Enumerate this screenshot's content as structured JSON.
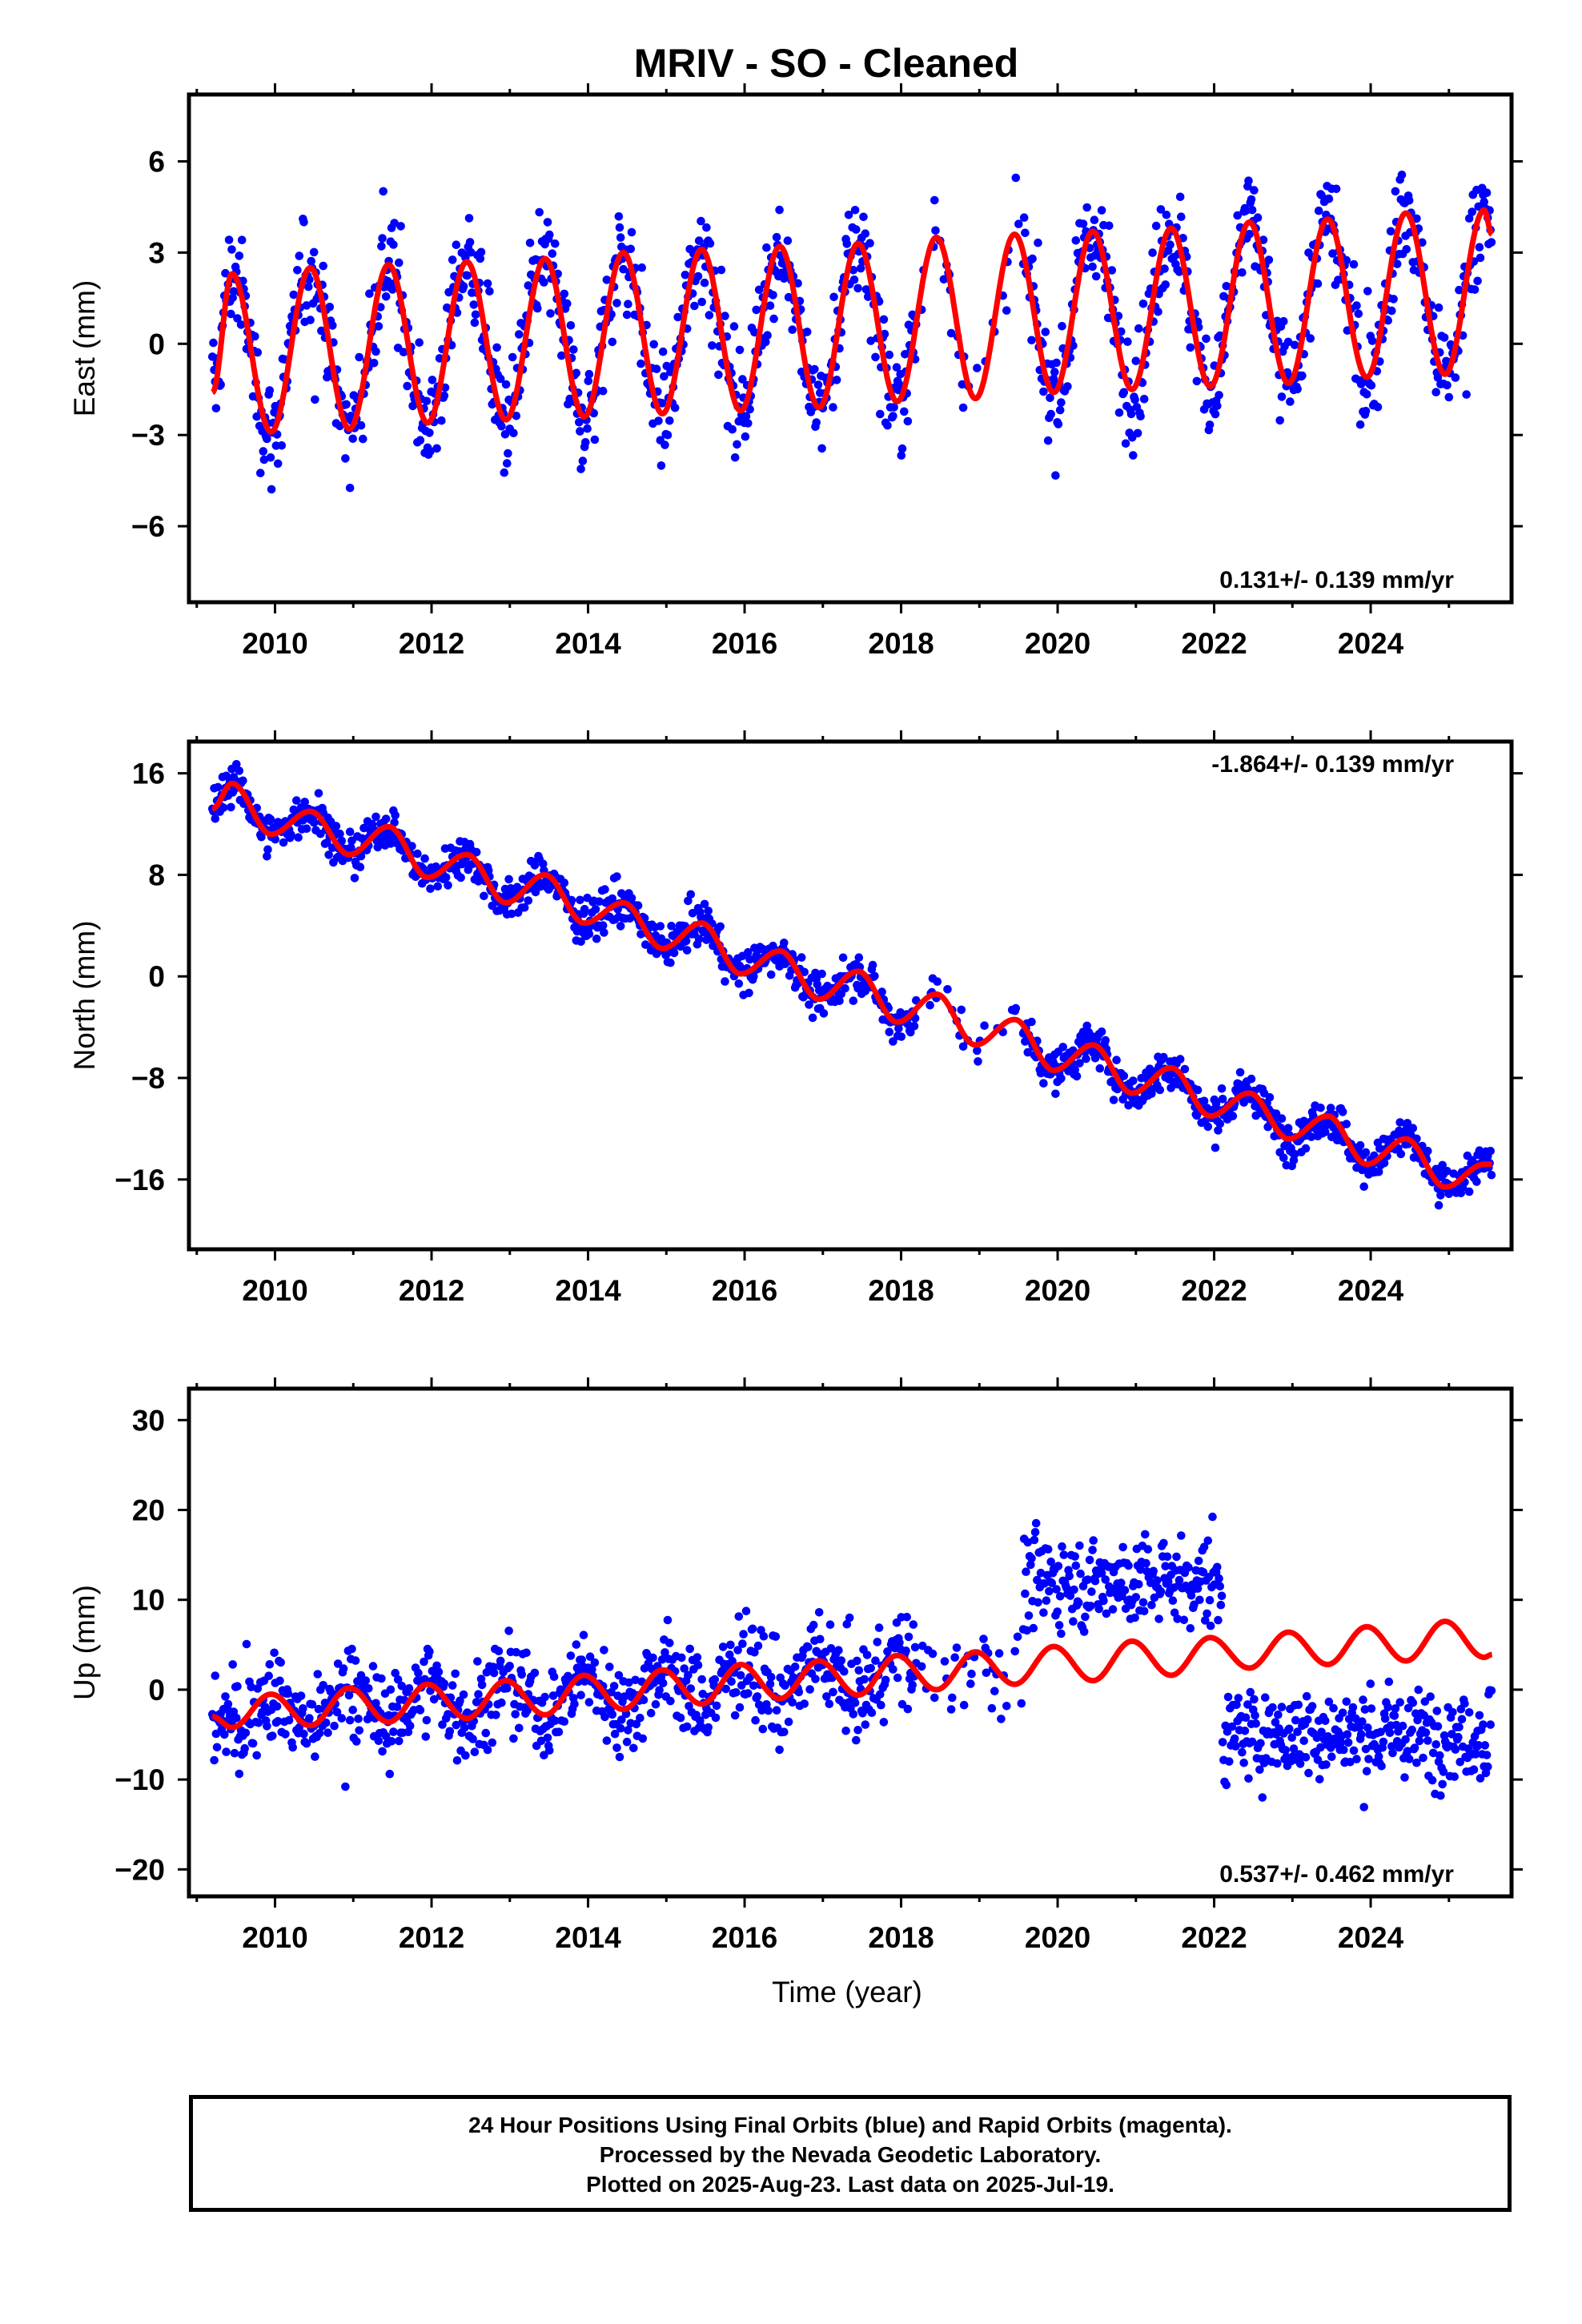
{
  "title": "MRIV  - SO - Cleaned",
  "colors": {
    "observed": "#0000ff",
    "model": "#ff0000",
    "frame": "#000000"
  },
  "x_axis": {
    "label": "Time (year)",
    "range": [
      2008.9,
      2025.8
    ],
    "ticks": [
      "2010",
      "2012",
      "2014",
      "2016",
      "2018",
      "2020",
      "2022",
      "2024"
    ],
    "tick_values": [
      2010,
      2012,
      2014,
      2016,
      2018,
      2020,
      2022,
      2024
    ]
  },
  "caption": {
    "line1": "24 Hour Positions Using Final Orbits (blue) and Rapid Orbits (magenta).",
    "line2": "Processed by the Nevada Geodetic Laboratory.",
    "line3": "Plotted on 2025-Aug-23. Last data on 2025-Jul-19."
  },
  "chart_data": [
    {
      "type": "scatter",
      "component": "East",
      "ylabel": "East (mm)",
      "ylim": [
        -8.5,
        8.2
      ],
      "yticks": [
        -6,
        -3,
        0,
        3,
        6
      ],
      "ytick_labels": [
        "−6",
        "−3",
        "0",
        "3",
        "6"
      ],
      "rate_text": "0.131+/- 0.139 mm/yr",
      "rate_position": "bottom-right",
      "series": [
        {
          "role": "daily positions",
          "color": "#0000ff",
          "marker": "dot",
          "x_range": [
            2009.2,
            2025.55
          ],
          "gap": [
            2018.2,
            2019.55
          ]
        },
        {
          "role": "model fit",
          "color": "#ff0000",
          "marker": "line",
          "x": [
            2009.2,
            2009.45,
            2009.95,
            2010.45,
            2010.95,
            2011.45,
            2011.95,
            2012.45,
            2012.95,
            2013.45,
            2013.95,
            2014.45,
            2014.95,
            2015.45,
            2015.95,
            2016.45,
            2016.95,
            2017.45,
            2017.95,
            2018.45,
            2018.95,
            2019.45,
            2019.95,
            2020.45,
            2020.95,
            2021.45,
            2021.95,
            2022.45,
            2022.95,
            2023.45,
            2023.95,
            2024.45,
            2024.95,
            2025.45,
            2025.55
          ],
          "y": [
            -1.6,
            2.3,
            -2.9,
            2.5,
            -2.8,
            2.6,
            -2.6,
            2.7,
            -2.5,
            2.8,
            -2.4,
            3.0,
            -2.3,
            3.1,
            -2.2,
            3.2,
            -2.1,
            3.3,
            -1.9,
            3.5,
            -1.8,
            3.6,
            -1.6,
            3.7,
            -1.5,
            3.8,
            -1.4,
            4.0,
            -1.3,
            4.1,
            -1.1,
            4.3,
            -1.0,
            4.4,
            3.6
          ]
        }
      ]
    },
    {
      "type": "scatter",
      "component": "North",
      "ylabel": "North (mm)",
      "ylim": [
        -21.5,
        18.5
      ],
      "yticks": [
        -16,
        -8,
        0,
        8,
        16
      ],
      "ytick_labels": [
        "−16",
        "−8",
        "0",
        "8",
        "16"
      ],
      "rate_text": "-1.864+/- 0.139 mm/yr",
      "rate_position": "top-right",
      "series": [
        {
          "role": "daily positions",
          "color": "#0000ff",
          "marker": "dot",
          "x_range": [
            2009.2,
            2025.55
          ],
          "gap": [
            2018.2,
            2019.55
          ]
        },
        {
          "role": "model fit",
          "color": "#ff0000",
          "marker": "line",
          "x": [
            2009.2,
            2009.45,
            2009.95,
            2010.45,
            2010.95,
            2011.45,
            2011.95,
            2012.45,
            2012.95,
            2013.45,
            2013.95,
            2014.45,
            2014.95,
            2015.45,
            2015.95,
            2016.45,
            2016.95,
            2017.45,
            2017.95,
            2018.45,
            2018.95,
            2019.45,
            2019.95,
            2020.45,
            2020.95,
            2021.45,
            2021.95,
            2022.45,
            2022.95,
            2023.45,
            2023.95,
            2024.45,
            2024.95,
            2025.45,
            2025.55
          ],
          "y": [
            13.2,
            15.2,
            11.2,
            13.0,
            9.6,
            11.8,
            7.8,
            9.6,
            5.8,
            8.0,
            4.2,
            5.8,
            2.2,
            4.2,
            0.2,
            2.0,
            -1.8,
            0.4,
            -3.6,
            -1.4,
            -5.4,
            -3.4,
            -7.4,
            -5.4,
            -9.2,
            -7.2,
            -11.0,
            -9.2,
            -12.8,
            -11.0,
            -14.8,
            -12.8,
            -16.6,
            -14.8,
            -14.8
          ]
        }
      ]
    },
    {
      "type": "scatter",
      "component": "Up",
      "ylabel": "Up (mm)",
      "ylim": [
        -23.0,
        33.5
      ],
      "yticks": [
        -20,
        -10,
        0,
        10,
        20,
        30
      ],
      "ytick_labels": [
        "−20",
        "−10",
        "0",
        "10",
        "20",
        "30"
      ],
      "rate_text": "0.537+/- 0.462 mm/yr",
      "rate_position": "bottom-right",
      "series": [
        {
          "role": "daily positions",
          "color": "#0000ff",
          "marker": "dot",
          "x_range": [
            2009.2,
            2025.55
          ],
          "gap": [
            2018.2,
            2019.55
          ],
          "offsets": [
            {
              "from": 2019.55,
              "to": 2022.1,
              "level": 12
            },
            {
              "from": 2022.1,
              "to": 2025.55,
              "level": -5
            }
          ]
        },
        {
          "role": "model fit",
          "color": "#ff0000",
          "marker": "line",
          "x": [
            2009.2,
            2009.45,
            2009.95,
            2010.45,
            2010.95,
            2011.45,
            2011.95,
            2012.45,
            2012.95,
            2013.45,
            2013.95,
            2014.45,
            2014.95,
            2015.45,
            2015.95,
            2016.45,
            2016.95,
            2017.45,
            2017.95,
            2018.45,
            2018.95,
            2019.45,
            2019.95,
            2020.45,
            2020.95,
            2021.45,
            2021.95,
            2022.45,
            2022.95,
            2023.45,
            2023.95,
            2024.45,
            2024.95,
            2025.45,
            2025.55
          ],
          "y": [
            -3.0,
            -4.2,
            -0.5,
            -4.0,
            0.2,
            -3.6,
            0.6,
            -3.2,
            1.0,
            -2.8,
            1.6,
            -2.2,
            2.2,
            -1.6,
            2.8,
            -1.0,
            3.2,
            -0.6,
            3.8,
            0.0,
            4.2,
            0.6,
            4.8,
            1.0,
            5.4,
            1.6,
            5.8,
            2.4,
            6.4,
            2.8,
            7.0,
            3.2,
            7.6,
            3.6,
            3.9
          ]
        }
      ]
    }
  ]
}
